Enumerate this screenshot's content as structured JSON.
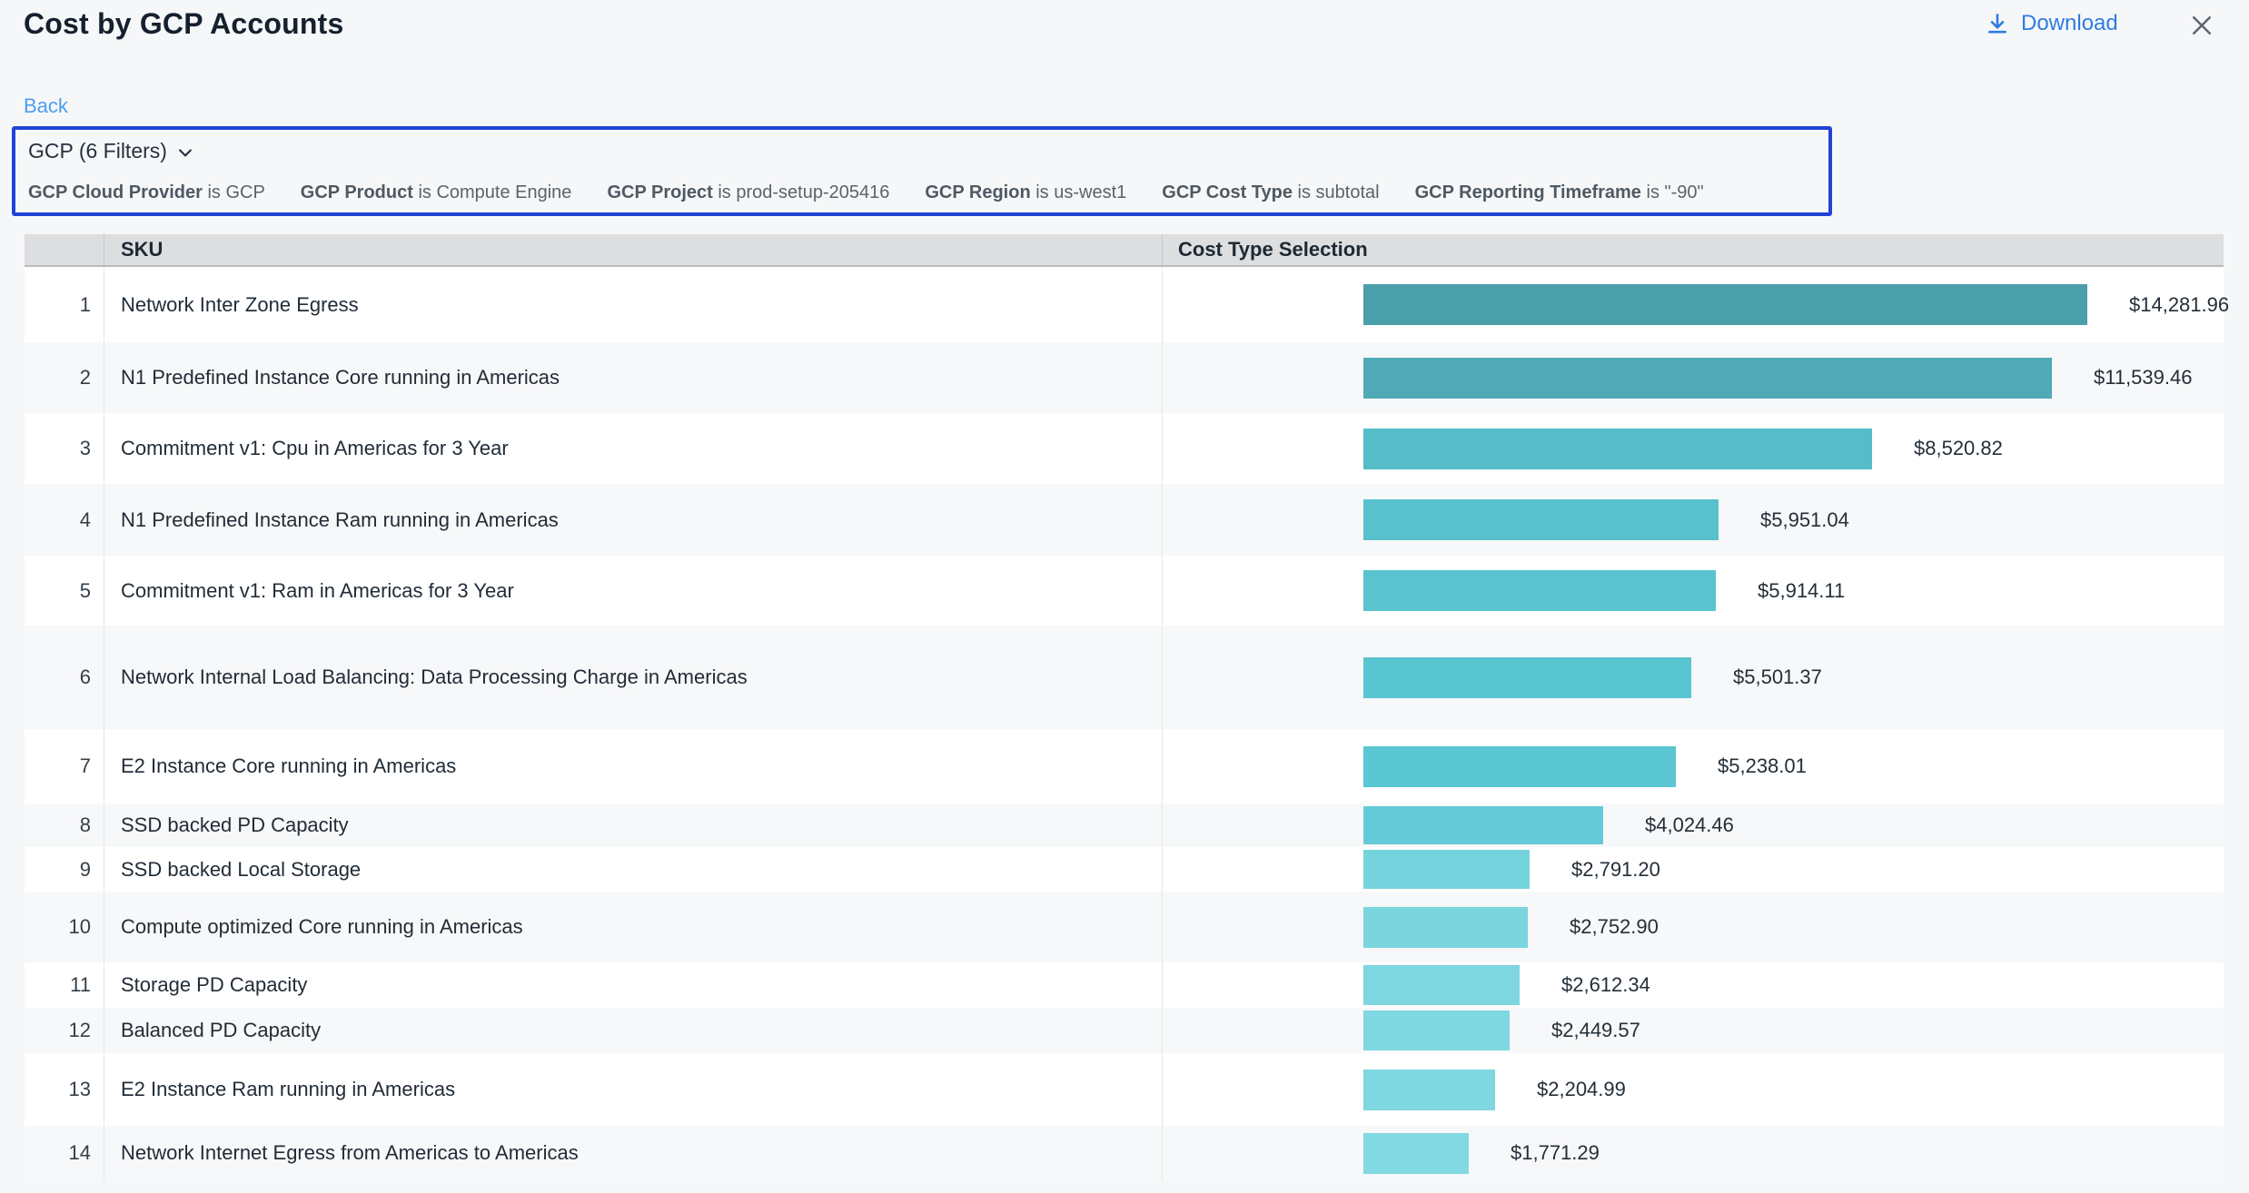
{
  "header": {
    "title": "Cost by GCP Accounts",
    "download_label": "Download",
    "download_color": "#2d7ce2",
    "close_color": "#5a6472"
  },
  "nav": {
    "back_label": "Back"
  },
  "filter_panel": {
    "summary_label": "GCP (6 Filters)",
    "border_color": "#2342d6",
    "filters": [
      {
        "name": "GCP Cloud Provider",
        "condition": "is GCP"
      },
      {
        "name": "GCP Product",
        "condition": "is Compute Engine"
      },
      {
        "name": "GCP Project",
        "condition": "is prod-setup-205416"
      },
      {
        "name": "GCP Region",
        "condition": "is us-west1"
      },
      {
        "name": "GCP Cost Type",
        "condition": "is subtotal"
      },
      {
        "name": "GCP Reporting Timeframe",
        "condition": "is \"-90\""
      }
    ]
  },
  "table": {
    "columns": {
      "sku": "SKU",
      "cost": "Cost Type Selection"
    },
    "max_value": 14281.96,
    "rows": [
      {
        "rank": "1",
        "sku": "Network Inter Zone Egress",
        "value": 14281.96,
        "label": "$14,281.96",
        "color": "#4A9FAA"
      },
      {
        "rank": "2",
        "sku": "N1 Predefined Instance Core running in Americas",
        "value": 11539.46,
        "label": "$11,539.46",
        "color": "#4FA9B6"
      },
      {
        "rank": "3",
        "sku": "Commitment v1: Cpu in Americas for 3 Year",
        "value": 8520.82,
        "label": "$8,520.82",
        "color": "#55BCC8"
      },
      {
        "rank": "4",
        "sku": "N1 Predefined Instance Ram running in Americas",
        "value": 5951.04,
        "label": "$5,951.04",
        "color": "#58C1CC"
      },
      {
        "rank": "5",
        "sku": "Commitment v1: Ram in Americas for 3 Year",
        "value": 5914.11,
        "label": "$5,914.11",
        "color": "#59C3CE"
      },
      {
        "rank": "6",
        "sku": "Network Internal Load Balancing: Data Processing Charge in Americas",
        "value": 5501.37,
        "label": "$5,501.37",
        "color": "#58C5D1"
      },
      {
        "rank": "7",
        "sku": "E2 Instance Core running in Americas",
        "value": 5238.01,
        "label": "$5,238.01",
        "color": "#5AC7D3"
      },
      {
        "rank": "8",
        "sku": "SSD backed PD Capacity",
        "value": 4024.46,
        "label": "$4,024.46",
        "color": "#65CAD7"
      },
      {
        "rank": "9",
        "sku": "SSD backed Local Storage",
        "value": 2791.2,
        "label": "$2,791.20",
        "color": "#75D3DD"
      },
      {
        "rank": "10",
        "sku": "Compute optimized Core running in Americas",
        "value": 2752.9,
        "label": "$2,752.90",
        "color": "#7BD5DF"
      },
      {
        "rank": "11",
        "sku": "Storage PD Capacity",
        "value": 2612.34,
        "label": "$2,612.34",
        "color": "#7DD6E0"
      },
      {
        "rank": "12",
        "sku": "Balanced PD Capacity",
        "value": 2449.57,
        "label": "$2,449.57",
        "color": "#7ED7E1"
      },
      {
        "rank": "13",
        "sku": "E2 Instance Ram running in Americas",
        "value": 2204.99,
        "label": "$2,204.99",
        "color": "#7FD7E1"
      },
      {
        "rank": "14",
        "sku": "Network Internet Egress from Americas to Americas",
        "value": 1771.29,
        "label": "$1,771.29",
        "color": "#82D9E2"
      }
    ]
  },
  "chart_data": {
    "type": "bar",
    "orientation": "horizontal",
    "title": "Cost by GCP Accounts",
    "series_label": "Cost Type Selection",
    "categories": [
      "Network Inter Zone Egress",
      "N1 Predefined Instance Core running in Americas",
      "Commitment v1: Cpu in Americas for 3 Year",
      "N1 Predefined Instance Ram running in Americas",
      "Commitment v1: Ram in Americas for 3 Year",
      "Network Internal Load Balancing: Data Processing Charge in Americas",
      "E2 Instance Core running in Americas",
      "SSD backed PD Capacity",
      "SSD backed Local Storage",
      "Compute optimized Core running in Americas",
      "Storage PD Capacity",
      "Balanced PD Capacity",
      "E2 Instance Ram running in Americas",
      "Network Internet Egress from Americas to Americas"
    ],
    "values": [
      14281.96,
      11539.46,
      8520.82,
      5951.04,
      5914.11,
      5501.37,
      5238.01,
      4024.46,
      2791.2,
      2752.9,
      2612.34,
      2449.57,
      2204.99,
      1771.29
    ],
    "value_labels": [
      "$14,281.96",
      "$11,539.46",
      "$8,520.82",
      "$5,951.04",
      "$5,914.11",
      "$5,501.37",
      "$5,238.01",
      "$4,024.46",
      "$2,791.20",
      "$2,752.90",
      "$2,612.34",
      "$2,449.57",
      "$2,204.99",
      "$1,771.29"
    ],
    "xlim": [
      0,
      14281.96
    ],
    "grid": false,
    "legend": false
  }
}
